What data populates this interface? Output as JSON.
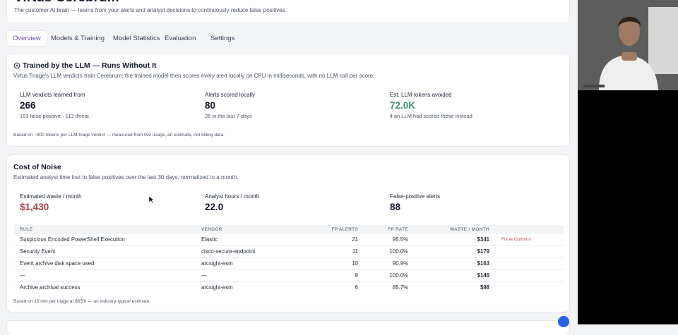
{
  "header": {
    "title": "Virtus Cerebrum",
    "subtitle": "The customer AI brain — learns from your alerts and analyst decisions to continuously reduce false positives."
  },
  "tabs": [
    "Overview",
    "Models & Training",
    "Model Statistics",
    "Evaluation",
    "Settings"
  ],
  "llm_card": {
    "title": "Trained by the LLM — Runs Without It",
    "description": "Virtus Triage's LLM verdicts train Cerebrum; the trained model then scores every alert locally on CPU in milliseconds, with no LLM call per score.",
    "stats": [
      {
        "label": "LLM verdicts learned from",
        "value": "266",
        "note": "153 false positive · 113 threat"
      },
      {
        "label": "Alerts scored locally",
        "value": "80",
        "note": "26 in the last 7 days"
      },
      {
        "label": "Est. LLM tokens avoided",
        "value": "72.0K",
        "note": "if an LLM had scored these instead"
      }
    ],
    "footnote": "Based on ~900 tokens per LLM triage verdict — measured from live usage, an estimate, not billing data."
  },
  "noise_card": {
    "title": "Cost of Noise",
    "description": "Estimated analyst time lost to false positives over the last 30 days, normalized to a month.",
    "stats": [
      {
        "label": "Estimated waste / month",
        "value": "$1,430"
      },
      {
        "label": "Analyst hours / month",
        "value": "22.0"
      },
      {
        "label": "False-positive alerts",
        "value": "88"
      }
    ],
    "table": {
      "columns": [
        "RULE",
        "VENDOR",
        "FP ALERTS",
        "FP RATE",
        "WASTE / MONTH"
      ],
      "rows": [
        [
          "Suspicious Encoded PowerShell Execution",
          "Elastic",
          "21",
          "95.5%",
          "$341"
        ],
        [
          "Security Event",
          "cisco-secure-endpoint",
          "11",
          "100.0%",
          "$179"
        ],
        [
          "Event archive disk space used",
          "arcsight-esm",
          "10",
          "90.9%",
          "$163"
        ],
        [
          "—",
          "—",
          "9",
          "100.0%",
          "$146"
        ],
        [
          "Archive archival success",
          "arcsight-esm",
          "6",
          "85.7%",
          "$98"
        ]
      ],
      "action": "Fix at Optimus"
    },
    "footnote": "Based on 15 min per triage at $65/h — an industry-typical estimate."
  }
}
